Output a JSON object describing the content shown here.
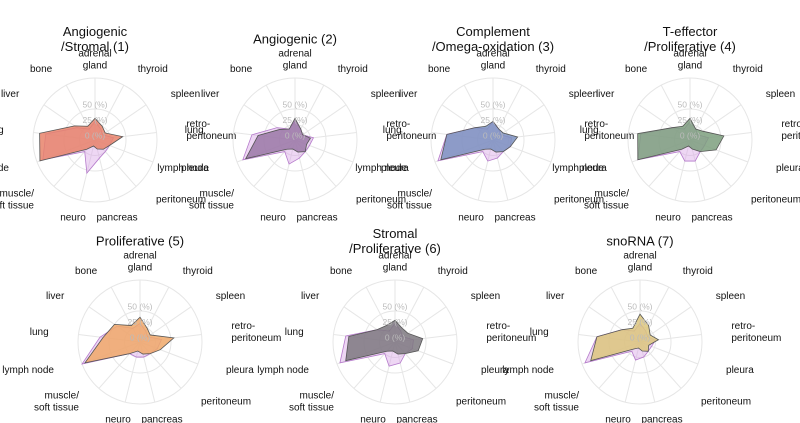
{
  "chart_data": [
    {
      "type": "radar",
      "title": "Angiogenic\n/Stromal (1)",
      "categories": [
        "adrenal\ngland",
        "thyroid",
        "spleen",
        "retro-\nperitoneum",
        "pleura",
        "peritoneum",
        "pancreas",
        "neuro",
        "muscle/\nsoft tissue",
        "lymph node",
        "lung",
        "liver",
        "bone"
      ],
      "rlim": [
        0,
        100
      ],
      "rticks": [
        {
          "value": 50,
          "label": "50 (%)"
        },
        {
          "value": 25,
          "label": "25 (%)"
        },
        {
          "value": 0,
          "label": "0 (%)"
        }
      ],
      "series": [
        {
          "color": "#d9a6e6",
          "values": [
            30,
            20,
            15,
            30,
            25,
            25,
            30,
            55,
            25,
            90,
            80,
            35,
            20
          ]
        },
        {
          "color": "#e8826a",
          "values": [
            35,
            25,
            20,
            45,
            25,
            20,
            15,
            10,
            20,
            95,
            90,
            40,
            25
          ]
        }
      ]
    },
    {
      "type": "radar",
      "title": "Angiogenic (2)",
      "categories": [
        "adrenal\ngland",
        "thyroid",
        "spleen",
        "retro-\nperitoneum",
        "pleura",
        "peritoneum",
        "pancreas",
        "neuro",
        "muscle/\nsoft tissue",
        "lymph node",
        "lung",
        "liver",
        "bone"
      ],
      "rlim": [
        0,
        100
      ],
      "rticks": [
        {
          "value": 50,
          "label": "50 (%)"
        },
        {
          "value": 25,
          "label": "25 (%)"
        },
        {
          "value": 0,
          "label": "0 (%)"
        }
      ],
      "series": [
        {
          "color": "#d9a6e6",
          "values": [
            30,
            20,
            15,
            30,
            25,
            25,
            30,
            40,
            25,
            90,
            70,
            35,
            20
          ]
        },
        {
          "color": "#9a78a6",
          "values": [
            35,
            20,
            15,
            25,
            20,
            25,
            20,
            15,
            20,
            85,
            60,
            30,
            20
          ]
        }
      ]
    },
    {
      "type": "radar",
      "title": "Complement\n/Omega-oxidation (3)",
      "categories": [
        "adrenal\ngland",
        "thyroid",
        "spleen",
        "retro-\nperitoneum",
        "pleura",
        "peritoneum",
        "pancreas",
        "neuro",
        "muscle/\nsoft tissue",
        "lymph node",
        "lung",
        "liver",
        "bone"
      ],
      "rlim": [
        0,
        100
      ],
      "rticks": [
        {
          "value": 50,
          "label": "50 (%)"
        },
        {
          "value": 25,
          "label": "25 (%)"
        },
        {
          "value": 0,
          "label": "0 (%)"
        }
      ],
      "series": [
        {
          "color": "#d9a6e6",
          "values": [
            30,
            20,
            15,
            30,
            30,
            25,
            30,
            35,
            25,
            95,
            75,
            35,
            20
          ]
        },
        {
          "color": "#7b91bf",
          "values": [
            30,
            20,
            20,
            40,
            30,
            25,
            20,
            15,
            20,
            90,
            75,
            35,
            25
          ]
        }
      ]
    },
    {
      "type": "radar",
      "title": "T-effector\n/Proliferative (4)",
      "categories": [
        "adrenal\ngland",
        "thyroid",
        "spleen",
        "retro-\nperitoneum",
        "pleura",
        "peritoneum",
        "pancreas",
        "neuro",
        "muscle/\nsoft tissue",
        "lymph node",
        "lung",
        "liver",
        "bone"
      ],
      "rlim": [
        0,
        100
      ],
      "rticks": [
        {
          "value": 50,
          "label": "50 (%)"
        },
        {
          "value": 25,
          "label": "25 (%)"
        },
        {
          "value": 0,
          "label": "0 (%)"
        }
      ],
      "series": [
        {
          "color": "#d9a6e6",
          "values": [
            30,
            20,
            15,
            30,
            25,
            25,
            35,
            35,
            25,
            90,
            80,
            35,
            20
          ]
        },
        {
          "color": "#7d9f7e",
          "values": [
            35,
            20,
            25,
            55,
            45,
            25,
            15,
            10,
            20,
            90,
            85,
            35,
            25
          ]
        }
      ]
    },
    {
      "type": "radar",
      "title": "Proliferative (5)",
      "categories": [
        "adrenal\ngland",
        "thyroid",
        "spleen",
        "retro-\nperitoneum",
        "pleura",
        "peritoneum",
        "pancreas",
        "neuro",
        "muscle/\nsoft tissue",
        "lymph node",
        "lung",
        "liver",
        "bone"
      ],
      "rlim": [
        0,
        100
      ],
      "rticks": [
        {
          "value": 50,
          "label": "50 (%)"
        },
        {
          "value": 25,
          "label": "25 (%)"
        },
        {
          "value": 0,
          "label": "0 (%)"
        }
      ],
      "series": [
        {
          "color": "#d9a6e6",
          "values": [
            30,
            20,
            15,
            35,
            30,
            25,
            25,
            25,
            25,
            100,
            65,
            45,
            25
          ]
        },
        {
          "color": "#f0a868",
          "values": [
            40,
            25,
            20,
            55,
            35,
            25,
            20,
            15,
            25,
            95,
            60,
            50,
            30
          ]
        }
      ]
    },
    {
      "type": "radar",
      "title": "Stromal\n/Proliferative (6)",
      "categories": [
        "adrenal\ngland",
        "thyroid",
        "spleen",
        "retro-\nperitoneum",
        "pleura",
        "peritoneum",
        "pancreas",
        "neuro",
        "muscle/\nsoft tissue",
        "lymph node",
        "lung",
        "liver",
        "bone"
      ],
      "rlim": [
        0,
        100
      ],
      "rticks": [
        {
          "value": 50,
          "label": "50 (%)"
        },
        {
          "value": 25,
          "label": "25 (%)"
        },
        {
          "value": 0,
          "label": "0 (%)"
        }
      ],
      "series": [
        {
          "color": "#d9a6e6",
          "values": [
            30,
            20,
            15,
            30,
            30,
            25,
            35,
            40,
            25,
            95,
            80,
            35,
            20
          ]
        },
        {
          "color": "#7d787f",
          "values": [
            35,
            25,
            25,
            45,
            40,
            25,
            20,
            15,
            20,
            85,
            75,
            35,
            30
          ]
        }
      ]
    },
    {
      "type": "radar",
      "title": "snoRNA (7)",
      "categories": [
        "adrenal\ngland",
        "thyroid",
        "spleen",
        "retro-\nperitoneum",
        "pleura",
        "peritoneum",
        "pancreas",
        "neuro",
        "muscle/\nsoft tissue",
        "lymph node",
        "lung",
        "liver",
        "bone"
      ],
      "rlim": [
        0,
        100
      ],
      "rticks": [
        {
          "value": 50,
          "label": "50 (%)"
        },
        {
          "value": 25,
          "label": "25 (%)"
        },
        {
          "value": 0,
          "label": "0 (%)"
        }
      ],
      "series": [
        {
          "color": "#d9a6e6",
          "values": [
            30,
            20,
            15,
            25,
            20,
            20,
            25,
            30,
            20,
            95,
            70,
            35,
            20
          ]
        },
        {
          "color": "#dcc67c",
          "values": [
            45,
            30,
            20,
            30,
            15,
            20,
            15,
            10,
            15,
            85,
            70,
            35,
            25
          ]
        }
      ]
    }
  ]
}
